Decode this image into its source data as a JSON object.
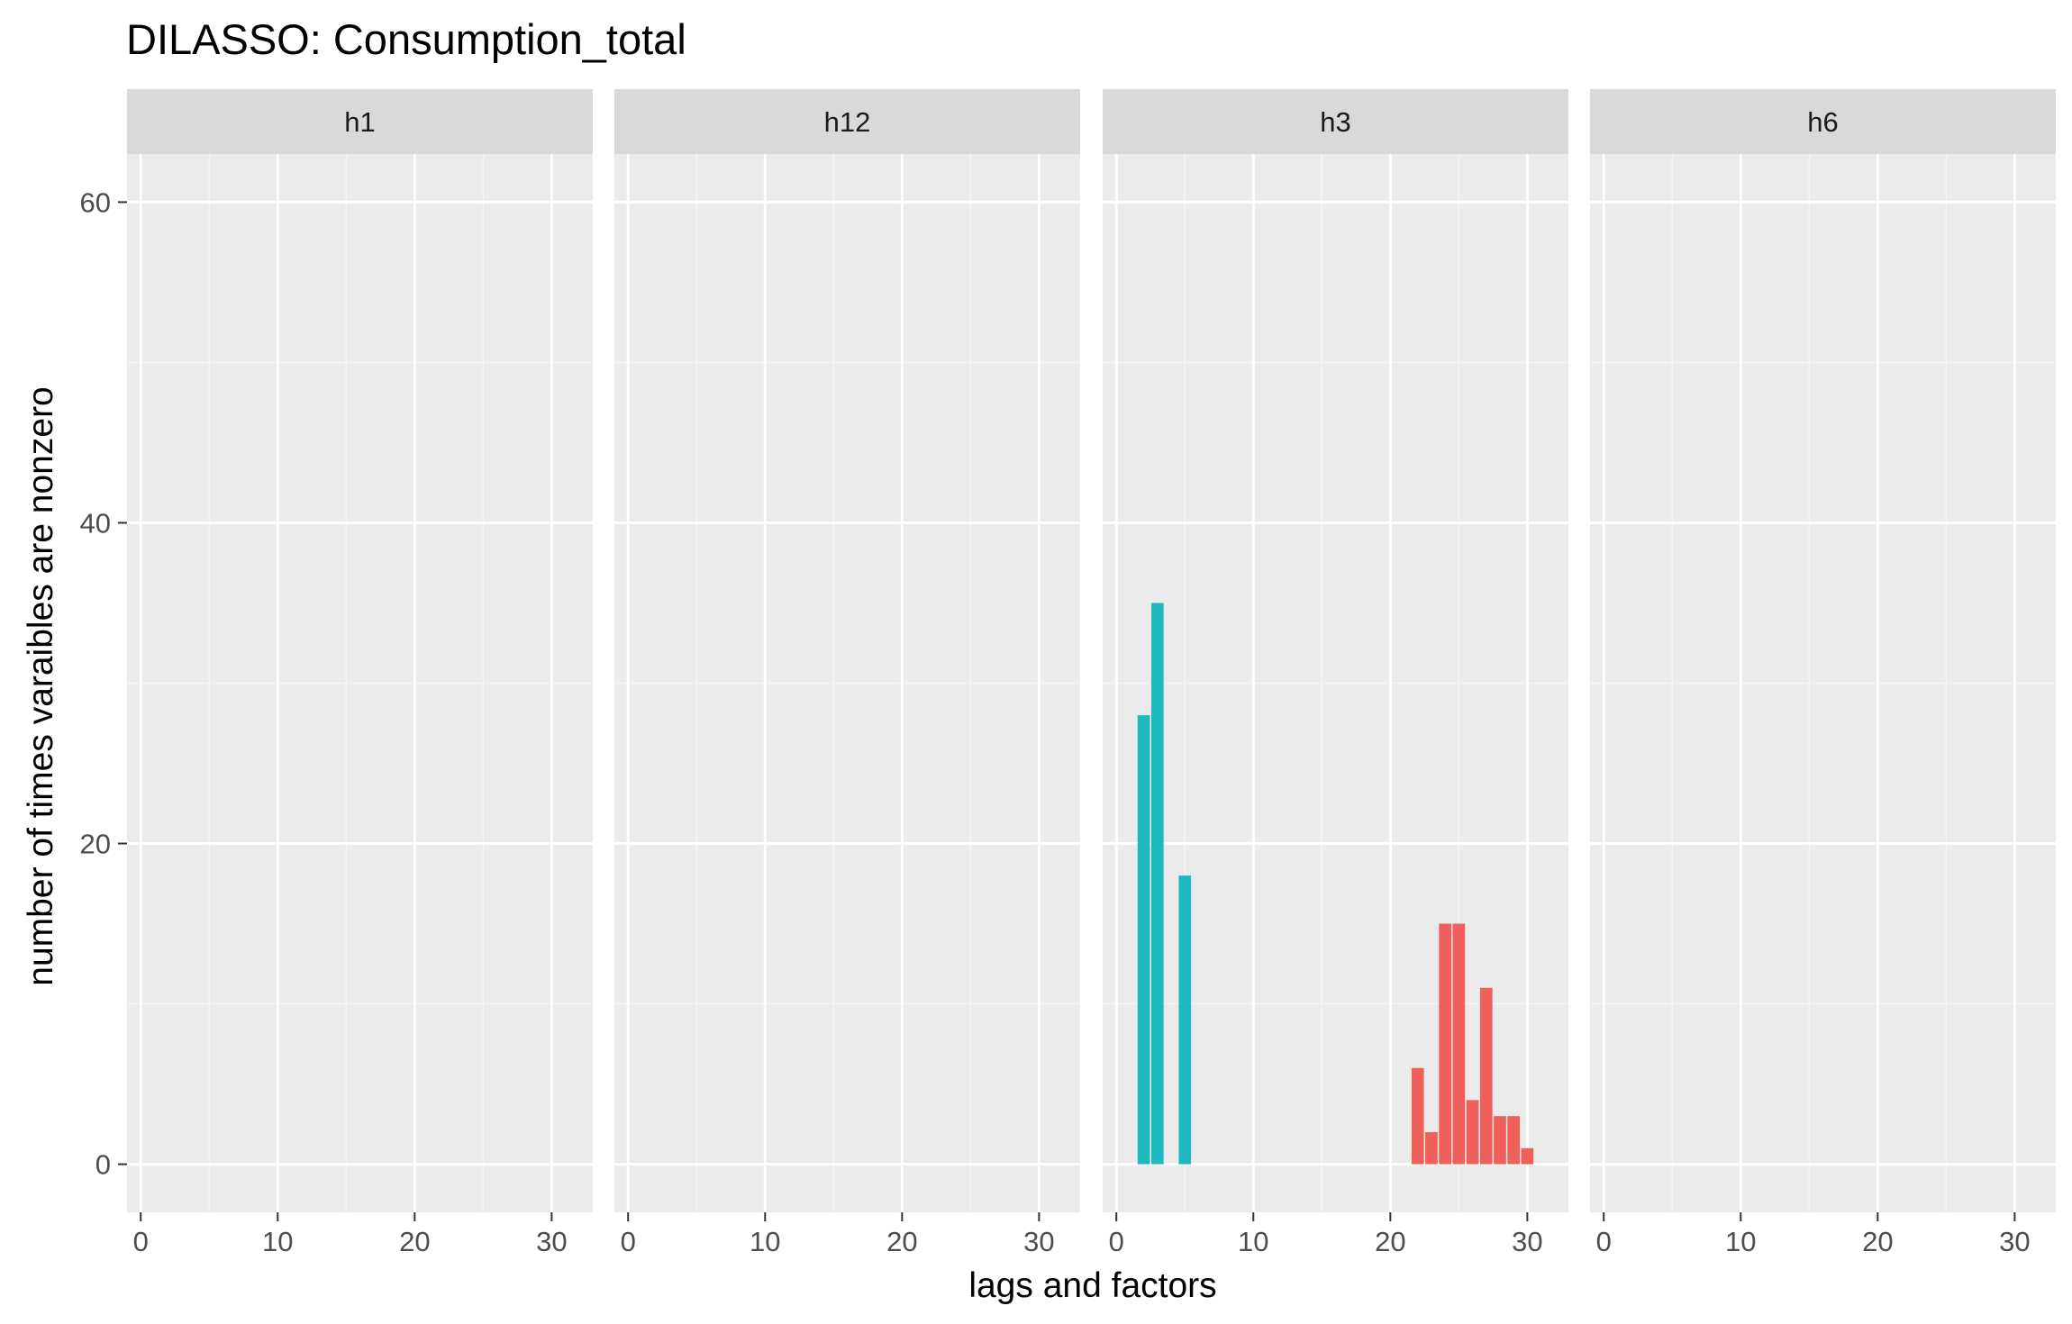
{
  "chart_data": {
    "type": "bar",
    "title": "DILASSO: Consumption_total",
    "xlabel": "lags and factors",
    "ylabel": "number of times varaibles are nonzero",
    "xlim": [
      -1,
      33
    ],
    "ylim": [
      -3,
      63
    ],
    "x_ticks": [
      0,
      10,
      20,
      30
    ],
    "y_ticks": [
      0,
      20,
      40,
      60
    ],
    "grid": true,
    "legend": "none",
    "colors": {
      "lags": "#1FB8BE",
      "factors": "#F0605A"
    },
    "panels": [
      {
        "label": "h1",
        "bars": []
      },
      {
        "label": "h12",
        "bars": []
      },
      {
        "label": "h3",
        "bars": [
          {
            "x": 2,
            "value": 28,
            "group": "lags"
          },
          {
            "x": 3,
            "value": 35,
            "group": "lags"
          },
          {
            "x": 5,
            "value": 18,
            "group": "lags"
          },
          {
            "x": 22,
            "value": 6,
            "group": "factors"
          },
          {
            "x": 23,
            "value": 2,
            "group": "factors"
          },
          {
            "x": 24,
            "value": 15,
            "group": "factors"
          },
          {
            "x": 25,
            "value": 15,
            "group": "factors"
          },
          {
            "x": 26,
            "value": 4,
            "group": "factors"
          },
          {
            "x": 27,
            "value": 11,
            "group": "factors"
          },
          {
            "x": 28,
            "value": 3,
            "group": "factors"
          },
          {
            "x": 29,
            "value": 3,
            "group": "factors"
          },
          {
            "x": 30,
            "value": 1,
            "group": "factors"
          }
        ]
      },
      {
        "label": "h6",
        "bars": []
      }
    ]
  }
}
